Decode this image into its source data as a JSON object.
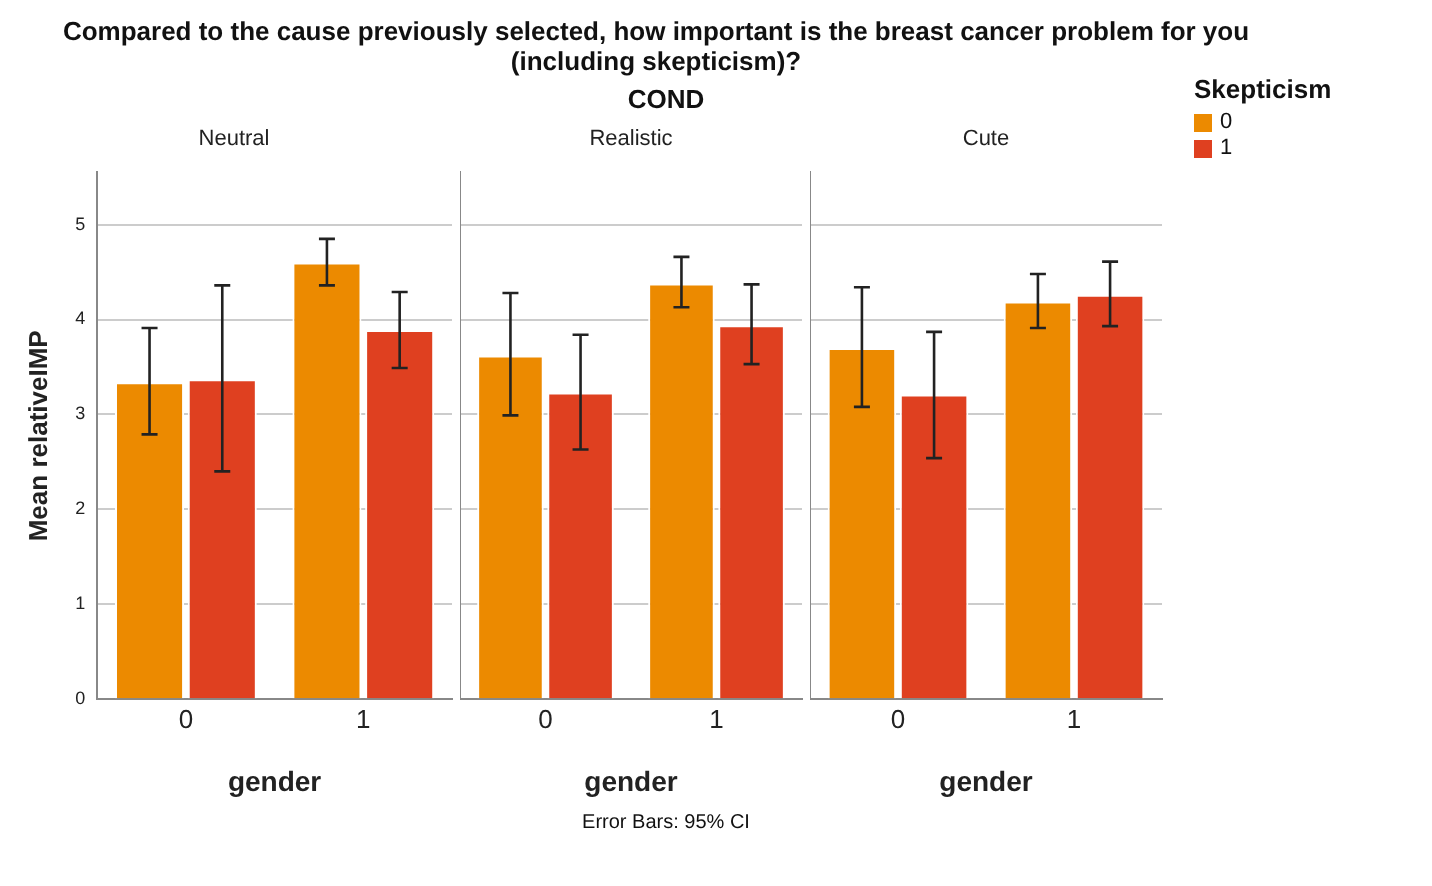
{
  "chart_data": [
    {
      "type": "bar",
      "title": "Neutral",
      "ylabel": "Mean relativeIMP",
      "xlabel": "gender",
      "categories": [
        "0",
        "1"
      ],
      "ylim": [
        0,
        5.55
      ],
      "yticks": [
        0,
        1,
        2,
        3,
        4,
        5
      ],
      "grid": "y",
      "legend": "top right",
      "legend_title": "Skepticism",
      "annotations": [
        "Compared to the cause previously selected, how important is the breast cancer problem for you (including skepticism)?",
        "COND",
        "Error Bars: 95% CI"
      ],
      "series": [
        {
          "name": "0",
          "color": "#ec8a00",
          "values": [
            3.34,
            4.6
          ],
          "errors": [
            [
              2.79,
              3.91
            ],
            [
              4.36,
              4.85
            ]
          ]
        },
        {
          "name": "1",
          "color": "#df4020",
          "values": [
            3.37,
            3.89
          ],
          "errors": [
            [
              2.4,
              4.36
            ],
            [
              3.49,
              4.29
            ]
          ]
        }
      ]
    },
    {
      "type": "bar",
      "title": "Realistic",
      "xlabel": "gender",
      "categories": [
        "0",
        "1"
      ],
      "ylim": [
        0,
        5.55
      ],
      "yticks": [
        0,
        1,
        2,
        3,
        4,
        5
      ],
      "grid": "y",
      "legend": false,
      "tick_labels": "x",
      "series": [
        {
          "name": "0",
          "color": "#ec8a00",
          "values": [
            3.62,
            4.38
          ],
          "errors": [
            [
              2.99,
              4.28
            ],
            [
              4.13,
              4.66
            ]
          ]
        },
        {
          "name": "1",
          "color": "#df4020",
          "values": [
            3.23,
            3.94
          ],
          "errors": [
            [
              2.63,
              3.84
            ],
            [
              3.53,
              4.37
            ]
          ]
        }
      ]
    },
    {
      "type": "bar",
      "title": "Cute",
      "xlabel": "gender",
      "categories": [
        "0",
        "1"
      ],
      "ylim": [
        0,
        5.55
      ],
      "yticks": [
        0,
        1,
        2,
        3,
        4,
        5
      ],
      "grid": "y",
      "legend": false,
      "tick_labels": "x",
      "series": [
        {
          "name": "0",
          "color": "#ec8a00",
          "values": [
            3.7,
            4.19
          ],
          "errors": [
            [
              3.08,
              4.34
            ],
            [
              3.91,
              4.48
            ]
          ]
        },
        {
          "name": "1",
          "color": "#df4020",
          "values": [
            3.21,
            4.26
          ],
          "errors": [
            [
              2.54,
              3.87
            ],
            [
              3.93,
              4.61
            ]
          ]
        }
      ]
    }
  ]
}
